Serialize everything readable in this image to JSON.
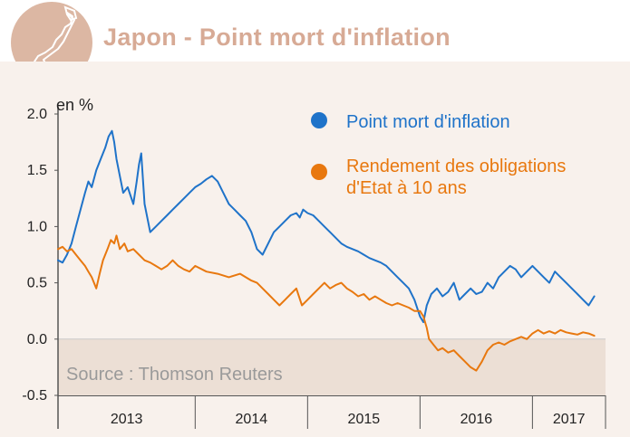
{
  "title": "Japon - Point mort d'inflation",
  "chart_data": {
    "type": "line",
    "ylabel": "en %",
    "ylim": [
      -0.5,
      2.0
    ],
    "yticks": [
      -0.5,
      0.0,
      0.5,
      1.0,
      1.5,
      2.0
    ],
    "ytick_labels": [
      "-0.5",
      "0.0",
      "0.5",
      "1.0",
      "1.5",
      "2.0"
    ],
    "xlim": [
      2012.78,
      2017.65
    ],
    "year_labels": [
      "2013",
      "2014",
      "2015",
      "2016",
      "2017"
    ],
    "year_bounds": [
      2013,
      2014,
      2015,
      2016,
      2017
    ],
    "source": "Source : Thomson Reuters",
    "legend": [
      {
        "lines": [
          "Point mort d'inflation"
        ],
        "color": "#1f73c9"
      },
      {
        "lines": [
          "Rendement des obligations",
          " d'Etat à 10 ans"
        ],
        "color": "#e8780f"
      }
    ],
    "series": [
      {
        "name": "Point mort d'inflation",
        "color": "#1f73c9",
        "x": [
          2012.78,
          2012.82,
          2012.86,
          2012.9,
          2012.94,
          2012.98,
          2013.02,
          2013.05,
          2013.08,
          2013.12,
          2013.16,
          2013.2,
          2013.23,
          2013.26,
          2013.28,
          2013.3,
          2013.33,
          2013.36,
          2013.4,
          2013.45,
          2013.48,
          2013.5,
          2013.52,
          2013.55,
          2013.6,
          2013.65,
          2013.7,
          2013.75,
          2013.8,
          2013.85,
          2013.9,
          2013.95,
          2014.0,
          2014.05,
          2014.1,
          2014.15,
          2014.2,
          2014.25,
          2014.3,
          2014.35,
          2014.4,
          2014.45,
          2014.5,
          2014.55,
          2014.6,
          2014.65,
          2014.7,
          2014.75,
          2014.8,
          2014.85,
          2014.9,
          2014.93,
          2014.96,
          2015.0,
          2015.05,
          2015.1,
          2015.15,
          2015.2,
          2015.25,
          2015.3,
          2015.35,
          2015.4,
          2015.45,
          2015.5,
          2015.55,
          2015.6,
          2015.65,
          2015.7,
          2015.75,
          2015.8,
          2015.85,
          2015.9,
          2015.95,
          2016.0,
          2016.03,
          2016.06,
          2016.1,
          2016.15,
          2016.2,
          2016.25,
          2016.3,
          2016.35,
          2016.4,
          2016.45,
          2016.5,
          2016.55,
          2016.6,
          2016.65,
          2016.7,
          2016.75,
          2016.8,
          2016.85,
          2016.9,
          2016.95,
          2017.0,
          2017.05,
          2017.1,
          2017.15,
          2017.2,
          2017.25,
          2017.3,
          2017.35,
          2017.4,
          2017.45,
          2017.5,
          2017.55
        ],
        "y": [
          0.7,
          0.68,
          0.75,
          0.85,
          1.0,
          1.15,
          1.3,
          1.4,
          1.35,
          1.5,
          1.6,
          1.7,
          1.8,
          1.85,
          1.75,
          1.6,
          1.45,
          1.3,
          1.35,
          1.2,
          1.4,
          1.55,
          1.65,
          1.2,
          0.95,
          1.0,
          1.05,
          1.1,
          1.15,
          1.2,
          1.25,
          1.3,
          1.35,
          1.38,
          1.42,
          1.45,
          1.4,
          1.3,
          1.2,
          1.15,
          1.1,
          1.05,
          0.95,
          0.8,
          0.75,
          0.85,
          0.95,
          1.0,
          1.05,
          1.1,
          1.12,
          1.08,
          1.15,
          1.12,
          1.1,
          1.05,
          1.0,
          0.95,
          0.9,
          0.85,
          0.82,
          0.8,
          0.78,
          0.75,
          0.72,
          0.7,
          0.68,
          0.65,
          0.6,
          0.55,
          0.5,
          0.45,
          0.35,
          0.2,
          0.15,
          0.3,
          0.4,
          0.45,
          0.38,
          0.42,
          0.5,
          0.35,
          0.4,
          0.45,
          0.4,
          0.42,
          0.5,
          0.45,
          0.55,
          0.6,
          0.65,
          0.62,
          0.55,
          0.6,
          0.65,
          0.6,
          0.55,
          0.5,
          0.6,
          0.55,
          0.5,
          0.45,
          0.4,
          0.35,
          0.3,
          0.38
        ]
      },
      {
        "name": "Rendement des obligations d'Etat à 10 ans",
        "color": "#e8780f",
        "x": [
          2012.78,
          2012.82,
          2012.86,
          2012.9,
          2012.94,
          2012.98,
          2013.02,
          2013.05,
          2013.08,
          2013.12,
          2013.15,
          2013.18,
          2013.22,
          2013.25,
          2013.28,
          2013.3,
          2013.33,
          2013.37,
          2013.4,
          2013.45,
          2013.5,
          2013.55,
          2013.6,
          2013.65,
          2013.7,
          2013.75,
          2013.8,
          2013.85,
          2013.9,
          2013.95,
          2014.0,
          2014.1,
          2014.2,
          2014.3,
          2014.4,
          2014.5,
          2014.55,
          2014.6,
          2014.65,
          2014.7,
          2014.75,
          2014.8,
          2014.85,
          2014.9,
          2014.95,
          2015.0,
          2015.05,
          2015.1,
          2015.15,
          2015.2,
          2015.25,
          2015.3,
          2015.35,
          2015.4,
          2015.45,
          2015.5,
          2015.55,
          2015.6,
          2015.65,
          2015.7,
          2015.75,
          2015.8,
          2015.85,
          2015.9,
          2015.95,
          2016.0,
          2016.03,
          2016.06,
          2016.08,
          2016.12,
          2016.16,
          2016.2,
          2016.25,
          2016.3,
          2016.35,
          2016.4,
          2016.45,
          2016.5,
          2016.55,
          2016.6,
          2016.65,
          2016.7,
          2016.75,
          2016.8,
          2016.85,
          2016.9,
          2016.95,
          2017.0,
          2017.05,
          2017.1,
          2017.15,
          2017.2,
          2017.25,
          2017.3,
          2017.35,
          2017.4,
          2017.45,
          2017.5,
          2017.55
        ],
        "y": [
          0.8,
          0.82,
          0.78,
          0.8,
          0.75,
          0.7,
          0.65,
          0.6,
          0.55,
          0.45,
          0.58,
          0.7,
          0.8,
          0.88,
          0.85,
          0.92,
          0.8,
          0.85,
          0.78,
          0.8,
          0.75,
          0.7,
          0.68,
          0.65,
          0.62,
          0.65,
          0.7,
          0.65,
          0.62,
          0.6,
          0.65,
          0.6,
          0.58,
          0.55,
          0.58,
          0.52,
          0.5,
          0.45,
          0.4,
          0.35,
          0.3,
          0.35,
          0.4,
          0.45,
          0.3,
          0.35,
          0.4,
          0.45,
          0.5,
          0.45,
          0.48,
          0.5,
          0.45,
          0.42,
          0.38,
          0.4,
          0.35,
          0.38,
          0.35,
          0.32,
          0.3,
          0.32,
          0.3,
          0.28,
          0.25,
          0.25,
          0.2,
          0.1,
          0.0,
          -0.05,
          -0.1,
          -0.08,
          -0.12,
          -0.1,
          -0.15,
          -0.2,
          -0.25,
          -0.28,
          -0.2,
          -0.1,
          -0.05,
          -0.03,
          -0.05,
          -0.02,
          0.0,
          0.02,
          0.0,
          0.05,
          0.08,
          0.05,
          0.07,
          0.05,
          0.08,
          0.06,
          0.05,
          0.04,
          0.06,
          0.05,
          0.03
        ]
      }
    ]
  }
}
